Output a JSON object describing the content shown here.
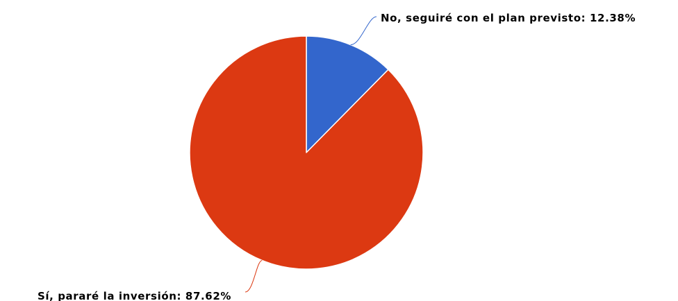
{
  "chart_data": {
    "type": "pie",
    "slices": [
      {
        "name": "No, seguiré con el plan previsto",
        "value": 12.38,
        "label": "No, seguiré con el plan previsto: 12.38%",
        "color": "#3366cc"
      },
      {
        "name": "Sí, pararé la inversión",
        "value": 87.62,
        "label": "Sí, pararé la inversión: 87.62%",
        "color": "#dc3912"
      }
    ],
    "unit": "%",
    "legend": "none",
    "data_labels": "outside with connector lines"
  }
}
